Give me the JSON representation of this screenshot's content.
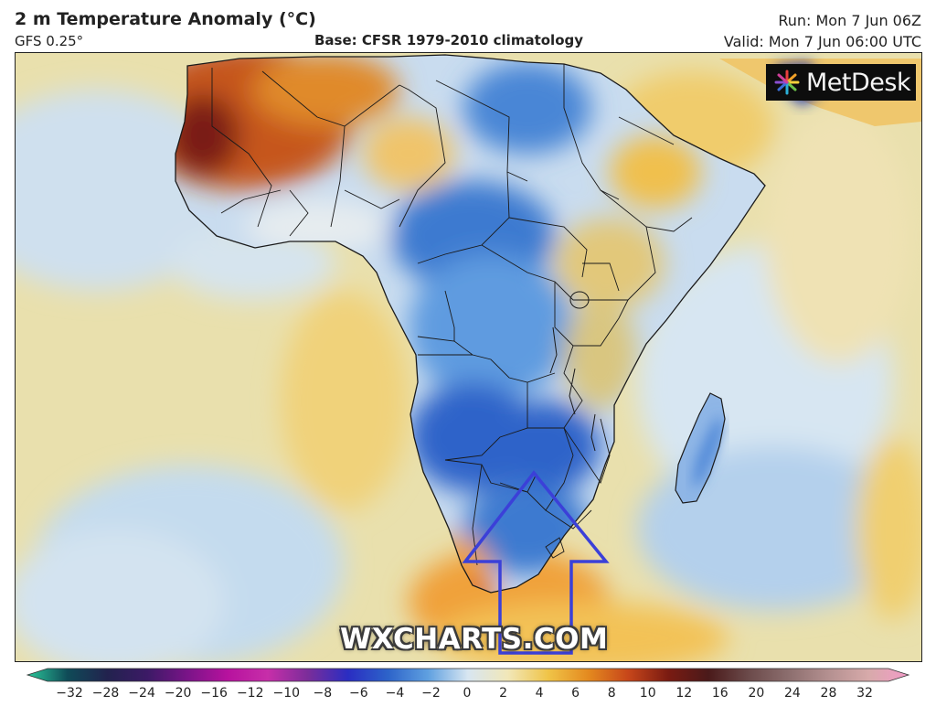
{
  "header": {
    "title": "2 m Temperature Anomaly (°C)",
    "model": "GFS 0.25°",
    "base": "Base: CFSR 1979-2010 climatology",
    "run": "Run: Mon 7 Jun 06Z",
    "valid": "Valid: Mon 7 Jun 06:00 UTC"
  },
  "logo": {
    "text": "MetDesk",
    "icon": "metdesk-sunburst-icon"
  },
  "watermark": "WXCHARTS.COM",
  "annotation": {
    "shape": "arrow pointing up",
    "color": "#3b40d8",
    "target": "South Africa"
  },
  "colorbar": {
    "min": -32,
    "max": 32,
    "ticks": [
      {
        "value": -32,
        "label": "−32"
      },
      {
        "value": -28,
        "label": "−28"
      },
      {
        "value": -24,
        "label": "−24"
      },
      {
        "value": -20,
        "label": "−20"
      },
      {
        "value": -16,
        "label": "−16"
      },
      {
        "value": -12,
        "label": "−12"
      },
      {
        "value": -10,
        "label": "−10"
      },
      {
        "value": -8,
        "label": "−8"
      },
      {
        "value": -6,
        "label": "−6"
      },
      {
        "value": -4,
        "label": "−4"
      },
      {
        "value": -2,
        "label": "−2"
      },
      {
        "value": 0,
        "label": "0"
      },
      {
        "value": 2,
        "label": "2"
      },
      {
        "value": 4,
        "label": "4"
      },
      {
        "value": 6,
        "label": "6"
      },
      {
        "value": 8,
        "label": "8"
      },
      {
        "value": 10,
        "label": "10"
      },
      {
        "value": 12,
        "label": "12"
      },
      {
        "value": 16,
        "label": "16"
      },
      {
        "value": 20,
        "label": "20"
      },
      {
        "value": 24,
        "label": "24"
      },
      {
        "value": 28,
        "label": "28"
      },
      {
        "value": 32,
        "label": "32"
      }
    ],
    "colors": [
      "#2bc79a",
      "#0f4b57",
      "#22224e",
      "#3c1a66",
      "#7a1488",
      "#b7129e",
      "#c72ea9",
      "#7b2d9a",
      "#2a2dc2",
      "#2d63c9",
      "#5fa0e0",
      "#d8e6f1",
      "#f1e7b8",
      "#f0c448",
      "#e48a1f",
      "#c7461a",
      "#7a1b12",
      "#4a1a1a",
      "#6b4a4a",
      "#8c6e6e",
      "#b49090",
      "#d7aaaa",
      "#f39cc8"
    ]
  }
}
